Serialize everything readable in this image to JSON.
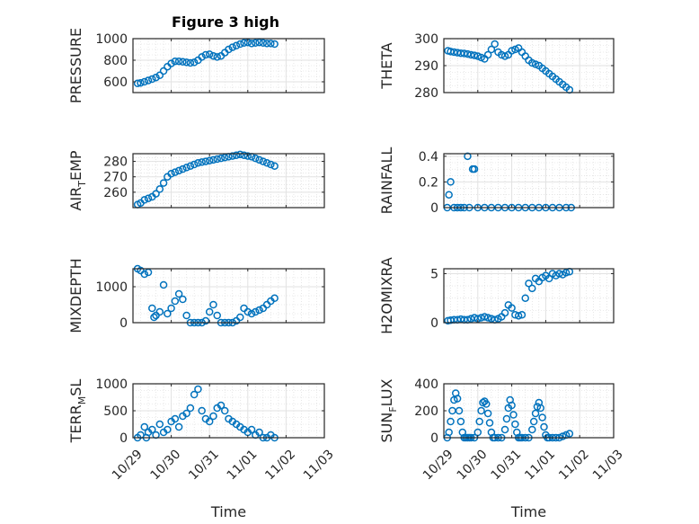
{
  "figure": {
    "title": "Figure 3 high"
  },
  "chart_data": [
    {
      "type": "scatter",
      "id": "pressure",
      "ylabel": "PRESSURE",
      "xlabel": "",
      "ylim": [
        500,
        1000
      ],
      "yticks": [
        600,
        800,
        1000
      ],
      "ytick_labels": [
        "600",
        "800",
        "1000"
      ],
      "xticks": [
        "10/29",
        "10/30",
        "10/31",
        "11/01",
        "11/02",
        "11/03"
      ],
      "show_xtick_labels": false,
      "title": "Figure 3 high",
      "x": [
        0.12,
        0.2,
        0.3,
        0.4,
        0.5,
        0.6,
        0.7,
        0.8,
        0.9,
        1.0,
        1.1,
        1.2,
        1.3,
        1.4,
        1.5,
        1.6,
        1.7,
        1.8,
        1.9,
        2.0,
        2.1,
        2.2,
        2.3,
        2.4,
        2.5,
        2.6,
        2.7,
        2.8,
        2.9,
        3.0,
        3.1,
        3.2,
        3.3,
        3.4,
        3.5,
        3.6,
        3.7
      ],
      "y": [
        585,
        590,
        600,
        612,
        625,
        640,
        660,
        700,
        740,
        770,
        790,
        790,
        785,
        780,
        775,
        780,
        800,
        830,
        850,
        855,
        840,
        830,
        840,
        870,
        900,
        920,
        935,
        950,
        960,
        965,
        955,
        960,
        965,
        960,
        955,
        955,
        950
      ]
    },
    {
      "type": "scatter",
      "id": "theta",
      "ylabel": "THETA",
      "xlabel": "",
      "ylim": [
        280,
        300
      ],
      "yticks": [
        280,
        290,
        300
      ],
      "ytick_labels": [
        "280",
        "290",
        "300"
      ],
      "xticks": [
        "10/29",
        "10/30",
        "10/31",
        "11/01",
        "11/02",
        "11/03"
      ],
      "show_xtick_labels": false,
      "x": [
        0.12,
        0.2,
        0.3,
        0.4,
        0.5,
        0.6,
        0.7,
        0.8,
        0.9,
        1.0,
        1.1,
        1.2,
        1.3,
        1.4,
        1.5,
        1.6,
        1.7,
        1.8,
        1.9,
        2.0,
        2.1,
        2.2,
        2.3,
        2.4,
        2.5,
        2.6,
        2.7,
        2.8,
        2.9,
        3.0,
        3.1,
        3.2,
        3.3,
        3.4,
        3.5,
        3.6,
        3.7
      ],
      "y": [
        295.5,
        295.2,
        295,
        294.8,
        294.6,
        294.5,
        294.3,
        294,
        293.8,
        293.5,
        293,
        292.5,
        294,
        296,
        298,
        295,
        294,
        293.5,
        294,
        295.5,
        296,
        296.5,
        295,
        293.5,
        292,
        291,
        290.5,
        290,
        289,
        288,
        287,
        286,
        285,
        284,
        283,
        282,
        281
      ]
    },
    {
      "type": "scatter",
      "id": "airtemp",
      "ylabel": "AIR_TEMP",
      "ylabel_main": "AIR",
      "ylabel_sub": "T",
      "ylabel_rest": "EMP",
      "xlabel": "",
      "ylim": [
        250,
        285
      ],
      "yticks": [
        260,
        270,
        280
      ],
      "ytick_labels": [
        "260",
        "270",
        "280"
      ],
      "xticks": [
        "10/29",
        "10/30",
        "10/31",
        "11/01",
        "11/02",
        "11/03"
      ],
      "show_xtick_labels": false,
      "x": [
        0.12,
        0.2,
        0.3,
        0.4,
        0.5,
        0.6,
        0.7,
        0.8,
        0.9,
        1.0,
        1.1,
        1.2,
        1.3,
        1.4,
        1.5,
        1.6,
        1.7,
        1.8,
        1.9,
        2.0,
        2.1,
        2.2,
        2.3,
        2.4,
        2.5,
        2.6,
        2.7,
        2.8,
        2.9,
        3.0,
        3.1,
        3.2,
        3.3,
        3.4,
        3.5,
        3.6,
        3.7
      ],
      "y": [
        252,
        253,
        255,
        256,
        257,
        259,
        262,
        266,
        270,
        272,
        273,
        274,
        275,
        276,
        277,
        278,
        279,
        279.5,
        280,
        280.5,
        281,
        281.5,
        282,
        282.5,
        283,
        283.5,
        284,
        284.5,
        284,
        283.5,
        283,
        282,
        281,
        280,
        279,
        278,
        277
      ]
    },
    {
      "type": "scatter",
      "id": "rainfall",
      "ylabel": "RAINFALL",
      "xlabel": "",
      "ylim": [
        0,
        0.42
      ],
      "yticks": [
        0,
        0.2,
        0.4
      ],
      "ytick_labels": [
        "0",
        "0.2",
        "0.4"
      ],
      "xticks": [
        "10/29",
        "10/30",
        "10/31",
        "11/01",
        "11/02",
        "11/03"
      ],
      "show_xtick_labels": false,
      "x": [
        0.1,
        0.15,
        0.2,
        0.3,
        0.4,
        0.5,
        0.6,
        0.7,
        0.75,
        0.85,
        0.9,
        1.0,
        1.2,
        1.4,
        1.6,
        1.8,
        2.0,
        2.2,
        2.4,
        2.6,
        2.8,
        3.0,
        3.2,
        3.4,
        3.6,
        3.75
      ],
      "y": [
        0,
        0.1,
        0.2,
        0,
        0,
        0,
        0,
        0.4,
        0,
        0.3,
        0.3,
        0,
        0,
        0,
        0,
        0,
        0,
        0,
        0,
        0,
        0,
        0,
        0,
        0,
        0,
        0
      ]
    },
    {
      "type": "scatter",
      "id": "mixdepth",
      "ylabel": "MIXDEPTH",
      "xlabel": "",
      "ylim": [
        0,
        1500
      ],
      "yticks": [
        0,
        1000
      ],
      "ytick_labels": [
        "0",
        "1000"
      ],
      "xticks": [
        "10/29",
        "10/30",
        "10/31",
        "11/01",
        "11/02",
        "11/03"
      ],
      "show_xtick_labels": false,
      "x": [
        0.12,
        0.2,
        0.3,
        0.4,
        0.5,
        0.55,
        0.6,
        0.7,
        0.8,
        0.9,
        1.0,
        1.1,
        1.2,
        1.3,
        1.4,
        1.5,
        1.6,
        1.7,
        1.8,
        1.9,
        2.0,
        2.1,
        2.2,
        2.3,
        2.4,
        2.5,
        2.6,
        2.7,
        2.8,
        2.9,
        3.0,
        3.1,
        3.2,
        3.3,
        3.4,
        3.5,
        3.6,
        3.7
      ],
      "y": [
        1500,
        1450,
        1350,
        1400,
        400,
        150,
        200,
        300,
        1050,
        250,
        400,
        600,
        800,
        650,
        200,
        0,
        0,
        0,
        0,
        50,
        300,
        500,
        200,
        0,
        0,
        0,
        0,
        50,
        150,
        400,
        300,
        250,
        300,
        350,
        400,
        500,
        600,
        680
      ]
    },
    {
      "type": "scatter",
      "id": "h2omixra",
      "ylabel": "H2OMIXRA",
      "xlabel": "",
      "ylim": [
        0,
        5.5
      ],
      "yticks": [
        0,
        5
      ],
      "ytick_labels": [
        "0",
        "5"
      ],
      "xticks": [
        "10/29",
        "10/30",
        "10/31",
        "11/01",
        "11/02",
        "11/03"
      ],
      "show_xtick_labels": false,
      "x": [
        0.12,
        0.2,
        0.3,
        0.4,
        0.5,
        0.6,
        0.7,
        0.8,
        0.9,
        1.0,
        1.1,
        1.2,
        1.3,
        1.4,
        1.5,
        1.6,
        1.7,
        1.8,
        1.9,
        2.0,
        2.1,
        2.2,
        2.3,
        2.4,
        2.5,
        2.6,
        2.7,
        2.8,
        2.9,
        3.0,
        3.1,
        3.2,
        3.3,
        3.4,
        3.5,
        3.6,
        3.7
      ],
      "y": [
        0.2,
        0.25,
        0.3,
        0.3,
        0.35,
        0.3,
        0.3,
        0.4,
        0.5,
        0.4,
        0.5,
        0.6,
        0.5,
        0.4,
        0.3,
        0.4,
        0.6,
        1.0,
        1.8,
        1.5,
        0.8,
        0.7,
        0.8,
        2.5,
        4.0,
        3.5,
        4.5,
        4.2,
        4.6,
        4.8,
        4.5,
        5.0,
        4.8,
        5.0,
        4.9,
        5.1,
        5.2
      ]
    },
    {
      "type": "scatter",
      "id": "terrmsl",
      "ylabel": "TERR_MSL",
      "ylabel_main": "TERR",
      "ylabel_sub": "M",
      "ylabel_rest": "SL",
      "xlabel": "Time",
      "ylim": [
        0,
        1000
      ],
      "yticks": [
        0,
        500,
        1000
      ],
      "ytick_labels": [
        "0",
        "500",
        "1000"
      ],
      "xticks": [
        "10/29",
        "10/30",
        "10/31",
        "11/01",
        "11/02",
        "11/03"
      ],
      "show_xtick_labels": true,
      "x": [
        0.12,
        0.2,
        0.3,
        0.35,
        0.4,
        0.5,
        0.6,
        0.7,
        0.8,
        0.9,
        1.0,
        1.1,
        1.2,
        1.3,
        1.4,
        1.5,
        1.6,
        1.7,
        1.8,
        1.9,
        2.0,
        2.1,
        2.2,
        2.3,
        2.4,
        2.5,
        2.6,
        2.7,
        2.8,
        2.9,
        3.0,
        3.1,
        3.2,
        3.3,
        3.4,
        3.5,
        3.6,
        3.7
      ],
      "y": [
        0,
        50,
        200,
        0,
        100,
        150,
        50,
        250,
        100,
        150,
        300,
        350,
        200,
        400,
        450,
        550,
        800,
        900,
        500,
        350,
        300,
        400,
        550,
        600,
        500,
        350,
        300,
        250,
        200,
        150,
        100,
        150,
        50,
        100,
        0,
        0,
        50,
        0
      ]
    },
    {
      "type": "scatter",
      "id": "sunflux",
      "ylabel": "SUN_FLUX",
      "ylabel_main": "SUN",
      "ylabel_sub": "F",
      "ylabel_rest": "LUX",
      "xlabel": "Time",
      "ylim": [
        0,
        400
      ],
      "yticks": [
        0,
        200,
        400
      ],
      "ytick_labels": [
        "0",
        "200",
        "400"
      ],
      "xticks": [
        "10/29",
        "10/30",
        "10/31",
        "11/01",
        "11/02",
        "11/03"
      ],
      "show_xtick_labels": true,
      "x": [
        0.1,
        0.15,
        0.2,
        0.25,
        0.3,
        0.35,
        0.4,
        0.45,
        0.5,
        0.55,
        0.6,
        0.65,
        0.7,
        0.75,
        0.8,
        0.9,
        1.0,
        1.05,
        1.1,
        1.15,
        1.2,
        1.25,
        1.3,
        1.35,
        1.4,
        1.45,
        1.5,
        1.6,
        1.7,
        1.8,
        1.85,
        1.9,
        1.95,
        2.0,
        2.05,
        2.1,
        2.15,
        2.2,
        2.25,
        2.3,
        2.4,
        2.5,
        2.6,
        2.65,
        2.7,
        2.75,
        2.8,
        2.85,
        2.9,
        2.95,
        3.0,
        3.05,
        3.1,
        3.2,
        3.3,
        3.4,
        3.5,
        3.6,
        3.7
      ],
      "y": [
        0,
        40,
        120,
        200,
        280,
        330,
        290,
        200,
        120,
        40,
        0,
        0,
        0,
        0,
        0,
        0,
        40,
        120,
        200,
        260,
        270,
        250,
        180,
        110,
        40,
        0,
        0,
        0,
        0,
        60,
        140,
        220,
        280,
        240,
        170,
        100,
        40,
        0,
        0,
        0,
        0,
        0,
        60,
        120,
        180,
        230,
        260,
        220,
        150,
        80,
        20,
        0,
        0,
        0,
        0,
        0,
        10,
        20,
        30
      ]
    }
  ]
}
